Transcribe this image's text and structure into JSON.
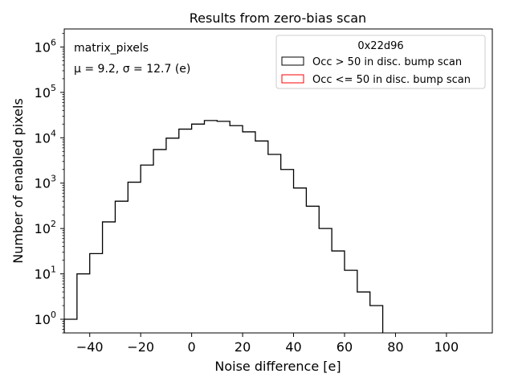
{
  "chart_data": {
    "type": "histogram",
    "title": "Results from zero-bias scan",
    "xlabel": "Noise difference [e]",
    "ylabel": "Number of enabled pixels",
    "xlim": [
      -50,
      118
    ],
    "ylim": [
      0.5,
      2500000
    ],
    "yscale": "log",
    "x_ticks": [
      -40,
      -20,
      0,
      20,
      40,
      60,
      80,
      100
    ],
    "x_tick_labels": [
      "−40",
      "−20",
      "0",
      "20",
      "40",
      "60",
      "80",
      "100"
    ],
    "y_ticks": [
      1,
      10,
      100,
      1000,
      10000,
      100000,
      1000000
    ],
    "y_tick_labels": [
      {
        "base": "10",
        "exp": "0"
      },
      {
        "base": "10",
        "exp": "1"
      },
      {
        "base": "10",
        "exp": "2"
      },
      {
        "base": "10",
        "exp": "3"
      },
      {
        "base": "10",
        "exp": "4"
      },
      {
        "base": "10",
        "exp": "5"
      },
      {
        "base": "10",
        "exp": "6"
      }
    ],
    "annotations": {
      "dataset": "matrix_pixels",
      "stats": "μ = 9.2, σ = 12.7 (e)"
    },
    "legend": {
      "title": "0x22d96",
      "location": "top-right",
      "entries": [
        {
          "label": "Occ > 50 in disc. bump scan",
          "color": "#000000"
        },
        {
          "label": "Occ <= 50 in disc. bump scan",
          "color": "#ff0000"
        }
      ]
    },
    "bin_edges": [
      -50,
      -45,
      -40,
      -35,
      -30,
      -25,
      -20,
      -15,
      -10,
      -5,
      0,
      5,
      10,
      15,
      20,
      25,
      30,
      35,
      40,
      45,
      50,
      55,
      60,
      65,
      70,
      75
    ],
    "series": [
      {
        "name": "Occ > 50 in disc. bump scan",
        "color": "#000000",
        "counts": [
          1,
          10,
          28,
          140,
          400,
          1050,
          2500,
          5500,
          9800,
          15500,
          20000,
          24000,
          23000,
          18500,
          13500,
          8500,
          4300,
          2000,
          780,
          310,
          100,
          32,
          12,
          4,
          2
        ]
      },
      {
        "name": "Occ <= 50 in disc. bump scan",
        "color": "#ff0000",
        "counts": []
      }
    ]
  }
}
